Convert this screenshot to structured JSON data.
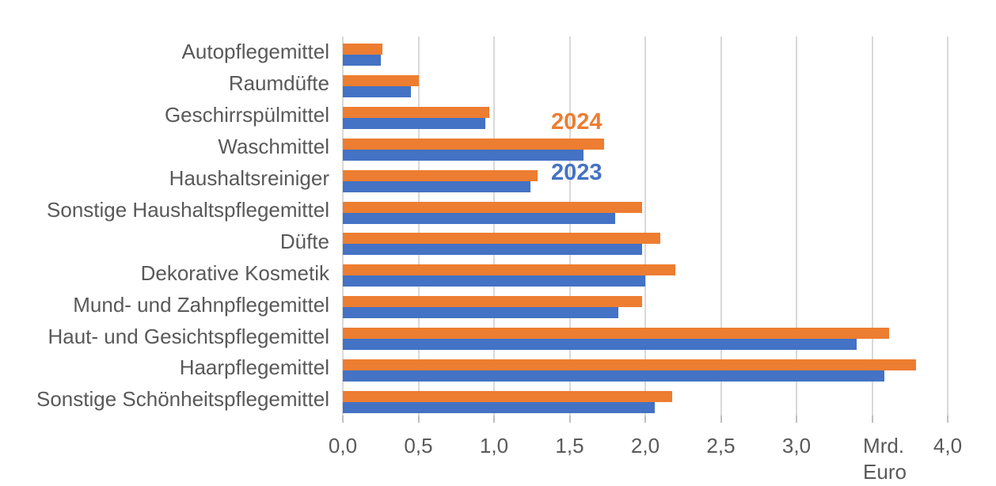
{
  "chart_data": {
    "type": "bar",
    "orientation": "horizontal",
    "title": "",
    "xlabel": "Mrd. Euro",
    "xlim": [
      0,
      4
    ],
    "x_tick_interval": 0.5,
    "grid": true,
    "legend_position": "inside-plot-upper-middle",
    "categories": [
      "Autopflegemittel",
      "Raumdüfte",
      "Geschirrspülmittel",
      "Waschmittel",
      "Haushaltsreiniger",
      "Sonstige Haushaltspflegemittel",
      "Düfte",
      "Dekorative Kosmetik",
      "Mund- und Zahnpflegemittel",
      "Haut- und Gesichtspflegemittel",
      "Haarpflegemittel",
      "Sonstige Schönheitspflegemittel"
    ],
    "series": [
      {
        "name": "2024",
        "color": "#ED7D31",
        "values": [
          0.26,
          0.5,
          0.97,
          1.73,
          1.29,
          1.98,
          2.1,
          2.2,
          1.98,
          3.61,
          3.79,
          2.18
        ]
      },
      {
        "name": "2023",
        "color": "#4472C4",
        "values": [
          0.25,
          0.45,
          0.94,
          1.59,
          1.24,
          1.8,
          1.98,
          2.0,
          1.82,
          3.4,
          3.58,
          2.06
        ]
      }
    ],
    "x_ticks": [
      "0,0",
      "0,5",
      "1,0",
      "1,5",
      "2,0",
      "2,5",
      "3,0",
      "Mrd.\nEuro",
      "4,0"
    ]
  },
  "colors": {
    "series_2024": "#ED7D31",
    "series_2023": "#4472C4",
    "gridline": "#D9D9D9",
    "tick_mark": "#BFBFBF",
    "text": "#595959",
    "background": "#FFFFFF"
  }
}
